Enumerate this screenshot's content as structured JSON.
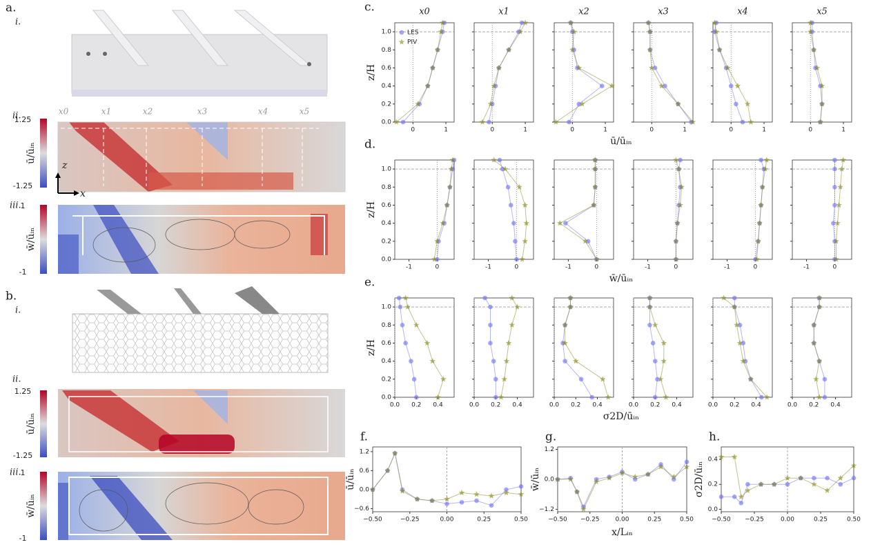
{
  "labels": {
    "a": "a.",
    "a_i": "i.",
    "a_ii": "ii.",
    "a_iii": "iii.",
    "b": "b.",
    "b_i": "i.",
    "b_ii": "ii.",
    "b_iii": "iii.",
    "z_arrow": "z",
    "x_arrow": "x"
  },
  "stations": [
    "x0",
    "x1",
    "x2",
    "x3",
    "x4",
    "x5"
  ],
  "colorbars": [
    {
      "label": "ū/ūᵢₙ",
      "max": "1.25",
      "min": "-1.25"
    },
    {
      "label": "w̄/ūᵢₙ",
      "max": "1",
      "min": "-1"
    },
    {
      "label": "ū/ūᵢₙ",
      "max": "1.25",
      "min": "-1.25"
    },
    {
      "label": "w̄/ūᵢₙ",
      "max": "1",
      "min": "-1"
    }
  ],
  "chart_data": [
    {
      "type": "profile",
      "label": "c.",
      "xlabel": "ū/ūᵢₙ",
      "ylabel": "z/H",
      "series": [
        {
          "name": "LES",
          "color": "#6b6bf5"
        },
        {
          "name": "PIV",
          "color": "#86861a"
        }
      ],
      "z": [
        0,
        0.2,
        0.4,
        0.6,
        0.8,
        1.0,
        1.1
      ],
      "xlim": [
        -0.55,
        1.25
      ],
      "xticks": [
        0,
        1
      ],
      "ylim": [
        0,
        1.1
      ],
      "yticks": [
        {
          "value": 0,
          "label": "0.0"
        },
        0.2,
        0.4,
        0.6,
        0.8,
        {
          "value": 1,
          "label": "1.0"
        }
      ],
      "panels": [
        {
          "title": "x0",
          "values": [
            [
              -0.3,
              0.2,
              0.45,
              0.6,
              0.75,
              0.9,
              0.95
            ],
            [
              -0.5,
              0.15,
              0.45,
              0.6,
              0.75,
              0.85,
              0.9
            ]
          ]
        },
        {
          "title": "x1",
          "values": [
            [
              -0.1,
              0.0,
              0.1,
              0.2,
              0.5,
              0.8,
              0.9
            ],
            [
              -0.3,
              -0.05,
              0.05,
              0.2,
              0.5,
              0.85,
              1.0
            ]
          ]
        },
        {
          "title": "x2",
          "values": [
            [
              -0.1,
              0.2,
              0.9,
              0.15,
              0.05,
              0.0,
              -0.05
            ],
            [
              -0.5,
              0.3,
              1.2,
              0.2,
              0.0,
              0.05,
              -0.05
            ]
          ]
        },
        {
          "title": "x3",
          "values": [
            [
              1.2,
              0.8,
              0.4,
              0.1,
              -0.05,
              -0.05,
              -0.1
            ],
            [
              1.25,
              0.8,
              0.3,
              0.0,
              -0.05,
              -0.05,
              -0.1
            ]
          ]
        },
        {
          "title": "x4",
          "values": [
            [
              0.35,
              0.15,
              0.0,
              -0.15,
              -0.35,
              -0.5,
              -0.45
            ],
            [
              0.6,
              0.5,
              0.2,
              -0.1,
              -0.35,
              -0.45,
              -0.5
            ]
          ]
        },
        {
          "title": "x5",
          "values": [
            [
              0.3,
              0.35,
              0.3,
              0.15,
              0.1,
              0.05,
              0.05
            ],
            [
              0.3,
              0.35,
              0.35,
              0.2,
              0.1,
              0.0,
              0.0
            ]
          ]
        }
      ]
    },
    {
      "type": "profile",
      "label": "d.",
      "xlabel": "w̄/ūᵢₙ",
      "ylabel": "z/H",
      "series": [
        {
          "color": "#6b6bf5"
        },
        {
          "color": "#86861a"
        }
      ],
      "z": [
        0,
        0.2,
        0.4,
        0.6,
        0.8,
        1.0,
        1.1
      ],
      "xlim": [
        -1.5,
        0.6
      ],
      "xticks": [
        -1,
        0
      ],
      "ylim": [
        0,
        1.1
      ],
      "yticks": [
        {
          "value": 0,
          "label": "0.0"
        },
        0.2,
        0.4,
        0.6,
        0.8,
        {
          "value": 1,
          "label": "1.0"
        }
      ],
      "panels": [
        {
          "values": [
            [
              0.0,
              0.05,
              0.25,
              0.35,
              0.45,
              0.55,
              0.6
            ],
            [
              -0.1,
              0.0,
              0.2,
              0.35,
              0.45,
              0.5,
              0.55
            ]
          ]
        },
        {
          "values": [
            [
              0.0,
              -0.05,
              -0.1,
              -0.2,
              -0.3,
              -0.5,
              -0.6
            ],
            [
              0.2,
              0.3,
              0.35,
              0.3,
              0.1,
              -0.4,
              -0.8
            ]
          ]
        },
        {
          "values": [
            [
              0.0,
              -0.3,
              -1.1,
              -0.1,
              -0.05,
              -0.05,
              -0.05
            ],
            [
              0.0,
              -0.4,
              -1.3,
              -0.1,
              -0.05,
              -0.05,
              -0.05
            ]
          ]
        },
        {
          "values": [
            [
              0.0,
              0.0,
              0.05,
              0.1,
              0.15,
              0.1,
              0.15
            ],
            [
              0.0,
              0.0,
              0.05,
              0.15,
              0.2,
              0.1,
              0.0
            ]
          ]
        },
        {
          "values": [
            [
              0.0,
              0.1,
              0.15,
              0.2,
              0.25,
              0.3,
              0.2
            ],
            [
              0.05,
              0.1,
              0.15,
              0.2,
              0.25,
              0.35,
              0.4
            ]
          ]
        },
        {
          "values": [
            [
              0.0,
              0.0,
              -0.05,
              0.0,
              0.0,
              0.0,
              0.0
            ],
            [
              0.05,
              0.05,
              0.1,
              0.15,
              0.2,
              0.25,
              0.3
            ]
          ]
        }
      ]
    },
    {
      "type": "profile",
      "label": "e.",
      "xlabel": "σ2D/ūᵢₙ",
      "ylabel": "z/H",
      "series": [
        {
          "color": "#6b6bf5"
        },
        {
          "color": "#86861a"
        }
      ],
      "z": [
        0,
        0.2,
        0.4,
        0.6,
        0.8,
        1.0,
        1.1
      ],
      "xlim": [
        0,
        0.55
      ],
      "xticks": [
        {
          "value": 0,
          "label": "0.0"
        },
        0.2,
        0.4
      ],
      "ylim": [
        0,
        1.1
      ],
      "yticks": [
        {
          "value": 0,
          "label": "0.0"
        },
        0.2,
        0.4,
        0.6,
        0.8,
        {
          "value": 1,
          "label": "1.0"
        }
      ],
      "panels": [
        {
          "values": [
            [
              0.2,
              0.18,
              0.15,
              0.1,
              0.07,
              0.05,
              0.04
            ],
            [
              0.4,
              0.45,
              0.35,
              0.3,
              0.2,
              0.12,
              0.1
            ]
          ]
        },
        {
          "values": [
            [
              0.2,
              0.2,
              0.18,
              0.15,
              0.15,
              0.15,
              0.1
            ],
            [
              0.25,
              0.28,
              0.3,
              0.32,
              0.35,
              0.4,
              0.35
            ]
          ]
        },
        {
          "values": [
            [
              0.35,
              0.25,
              0.1,
              0.08,
              0.1,
              0.15,
              0.15
            ],
            [
              0.5,
              0.45,
              0.2,
              0.1,
              0.1,
              0.15,
              0.15
            ]
          ]
        },
        {
          "values": [
            [
              0.2,
              0.22,
              0.2,
              0.18,
              0.15,
              0.15,
              0.15
            ],
            [
              0.3,
              0.25,
              0.28,
              0.28,
              0.2,
              0.15,
              0.15
            ]
          ]
        },
        {
          "values": [
            [
              0.45,
              0.35,
              0.3,
              0.28,
              0.25,
              0.2,
              0.2
            ],
            [
              0.5,
              0.35,
              0.28,
              0.25,
              0.22,
              0.2,
              0.1
            ]
          ]
        },
        {
          "values": [
            [
              0.3,
              0.3,
              0.25,
              0.2,
              0.2,
              0.25,
              0.25
            ],
            [
              0.25,
              0.22,
              0.25,
              0.2,
              0.2,
              0.25,
              0.25
            ]
          ]
        }
      ]
    },
    {
      "type": "line",
      "label": "f.",
      "ylabel": "ū/ūᵢₙ",
      "x": [
        -0.5,
        -0.4,
        -0.35,
        -0.3,
        -0.2,
        -0.1,
        0.0,
        0.1,
        0.2,
        0.3,
        0.4,
        0.5
      ],
      "series": [
        {
          "color": "#6b6bf5",
          "values": [
            0.0,
            0.6,
            1.15,
            0.0,
            -0.3,
            -0.35,
            -0.45,
            -0.4,
            -0.35,
            -0.5,
            0.0,
            0.1
          ]
        },
        {
          "color": "#86861a",
          "values": [
            0.0,
            0.6,
            1.15,
            -0.05,
            -0.3,
            -0.35,
            -0.3,
            -0.1,
            -0.15,
            -0.2,
            -0.1,
            -0.15
          ]
        }
      ],
      "xlim": [
        -0.5,
        0.5
      ],
      "xticks": [
        {
          "value": -0.5,
          "label": "−0.50"
        },
        {
          "value": -0.25,
          "label": "−0.25"
        },
        {
          "value": 0,
          "label": "0.00"
        },
        {
          "value": 0.25,
          "label": "0.25"
        },
        {
          "value": 0.5,
          "label": "0.50"
        }
      ],
      "ylim": [
        -0.7,
        1.35
      ],
      "yticks": [
        {
          "value": -0.6,
          "label": "−0.6"
        },
        {
          "value": 0,
          "label": "0.0"
        },
        0.6,
        1.2
      ]
    },
    {
      "type": "line",
      "label": "g.",
      "ylabel": "w̄/ūᵢₙ",
      "xlabel": "x/Lᵢₙ",
      "x": [
        -0.5,
        -0.4,
        -0.35,
        -0.3,
        -0.2,
        -0.1,
        0.0,
        0.1,
        0.2,
        0.3,
        0.4,
        0.5
      ],
      "series": [
        {
          "color": "#6b6bf5",
          "values": [
            0.0,
            0.05,
            -0.5,
            -1.1,
            0.0,
            0.1,
            0.3,
            0.0,
            0.2,
            0.6,
            0.0,
            0.7
          ]
        },
        {
          "color": "#86861a",
          "values": [
            0.0,
            0.0,
            -0.5,
            -1.2,
            -0.1,
            0.05,
            0.25,
            0.1,
            0.2,
            0.5,
            0.1,
            0.5
          ]
        }
      ],
      "xlim": [
        -0.5,
        0.5
      ],
      "xticks": [
        {
          "value": -0.5,
          "label": "−0.50"
        },
        {
          "value": -0.25,
          "label": "−0.25"
        },
        {
          "value": 0,
          "label": "0.00"
        },
        {
          "value": 0.25,
          "label": "0.25"
        },
        {
          "value": 0.5,
          "label": "0.50"
        }
      ],
      "ylim": [
        -1.3,
        1.3
      ],
      "yticks": [
        {
          "value": -1.2,
          "label": "−1.2"
        },
        {
          "value": 0,
          "label": "0.0"
        },
        1.2
      ]
    },
    {
      "type": "line",
      "label": "h.",
      "ylabel": "σ2D/ūᵢₙ",
      "x": [
        -0.5,
        -0.4,
        -0.35,
        -0.3,
        -0.2,
        -0.1,
        0.0,
        0.1,
        0.2,
        0.3,
        0.4,
        0.5
      ],
      "series": [
        {
          "color": "#6b6bf5",
          "values": [
            0.1,
            0.1,
            0.05,
            0.2,
            0.2,
            0.2,
            0.2,
            0.25,
            0.25,
            0.25,
            0.2,
            0.25
          ]
        },
        {
          "color": "#86861a",
          "values": [
            0.42,
            0.42,
            0.1,
            0.15,
            0.2,
            0.2,
            0.25,
            0.25,
            0.2,
            0.15,
            0.25,
            0.35
          ]
        }
      ],
      "xlim": [
        -0.5,
        0.5
      ],
      "xticks": [
        {
          "value": -0.5,
          "label": "−0.50"
        },
        {
          "value": -0.25,
          "label": "−0.25"
        },
        {
          "value": 0,
          "label": "0.00"
        },
        {
          "value": 0.25,
          "label": "0.25"
        },
        {
          "value": 0.5,
          "label": "0.50"
        }
      ],
      "ylim": [
        -0.02,
        0.5
      ],
      "yticks": [
        {
          "value": 0,
          "label": "0.0"
        },
        0.2,
        0.4
      ]
    }
  ]
}
